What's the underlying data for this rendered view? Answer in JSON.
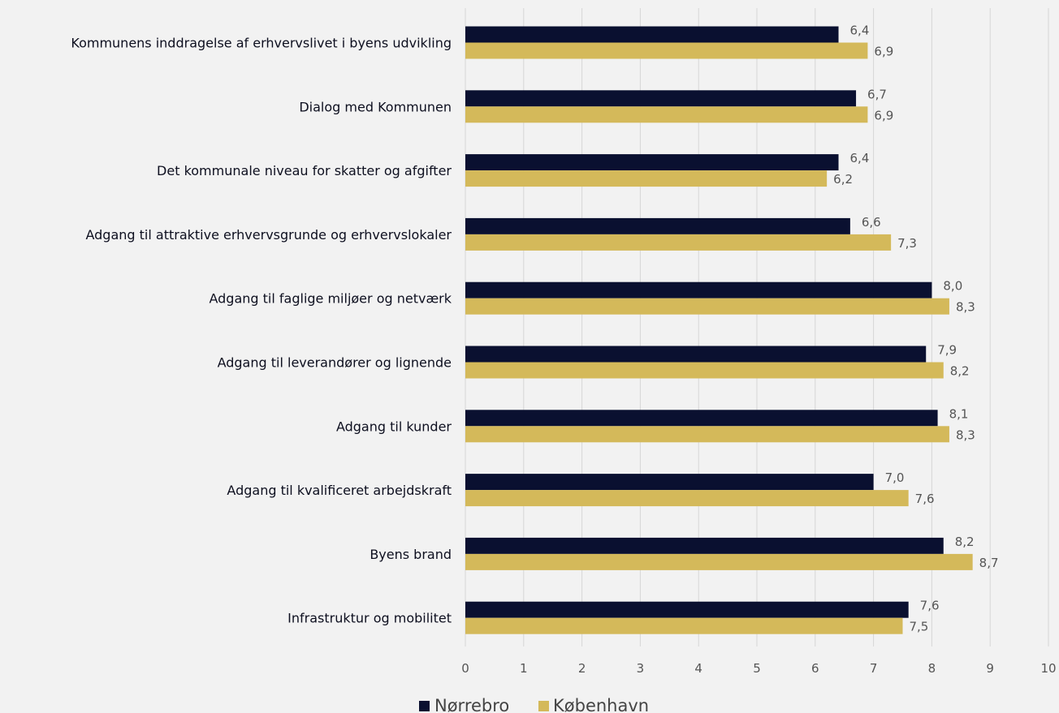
{
  "chart_data": {
    "type": "bar",
    "orientation": "horizontal",
    "categories": [
      "Kommunens inddragelse af erhvervslivet i byens udvikling",
      "Dialog med Kommunen",
      "Det kommunale niveau for skatter og afgifter",
      "Adgang til attraktive erhvervsgrunde og erhvervslokaler",
      "Adgang til faglige miljøer og netværk",
      "Adgang til leverandører og lignende",
      "Adgang til kunder",
      "Adgang til kvalificeret arbejdskraft",
      "Byens brand",
      "Infrastruktur og mobilitet"
    ],
    "series": [
      {
        "name": "Nørrebro",
        "color": "#0a1030",
        "values": [
          6.4,
          6.7,
          6.4,
          6.6,
          8.0,
          7.9,
          8.1,
          7.0,
          8.2,
          7.6
        ],
        "labels": [
          "6,4",
          "6,7",
          "6,4",
          "6,6",
          "8,0",
          "7,9",
          "8,1",
          "7,0",
          "8,2",
          "7,6"
        ]
      },
      {
        "name": "København",
        "color": "#d4b95a",
        "values": [
          6.9,
          6.9,
          6.2,
          7.3,
          8.3,
          8.2,
          8.3,
          7.6,
          8.7,
          7.5
        ],
        "labels": [
          "6,9",
          "6,9",
          "6,2",
          "7,3",
          "8,3",
          "8,2",
          "8,3",
          "7,6",
          "8,7",
          "7,5"
        ]
      }
    ],
    "xlim": [
      0,
      10
    ],
    "xticks": [
      "0",
      "1",
      "2",
      "3",
      "4",
      "5",
      "6",
      "7",
      "8",
      "9",
      "10"
    ],
    "grid": true,
    "legend_position": "bottom"
  }
}
